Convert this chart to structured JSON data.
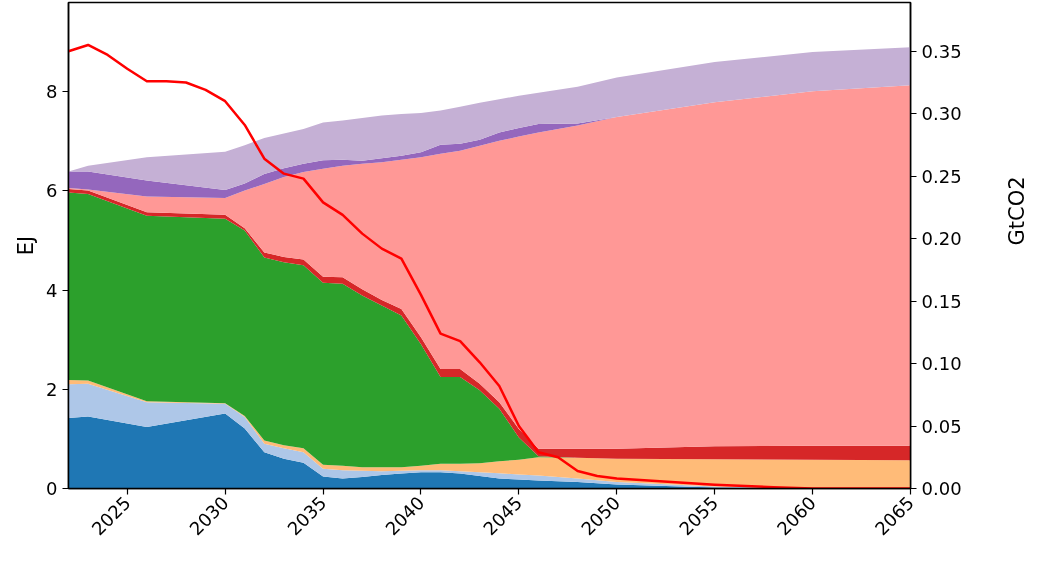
{
  "chart_data": {
    "type": "area",
    "stacked": true,
    "ylabel": "EJ",
    "y2label": "GtCO2",
    "x": [
      2022,
      2023,
      2026,
      2030,
      2031,
      2032,
      2033,
      2034,
      2035,
      2036,
      2037,
      2038,
      2039,
      2040,
      2041,
      2042,
      2043,
      2044,
      2045,
      2046,
      2048,
      2050,
      2055,
      2060,
      2065
    ],
    "series": [
      {
        "color": "#1f77b4",
        "values": [
          1.42,
          1.45,
          1.24,
          1.51,
          1.21,
          0.73,
          0.6,
          0.52,
          0.24,
          0.2,
          0.23,
          0.27,
          0.3,
          0.33,
          0.33,
          0.3,
          0.25,
          0.2,
          0.18,
          0.16,
          0.13,
          0.08,
          0.02,
          0,
          0
        ]
      },
      {
        "color": "#aec7e8",
        "values": [
          0.68,
          0.66,
          0.5,
          0.2,
          0.23,
          0.17,
          0.21,
          0.21,
          0.16,
          0.17,
          0.13,
          0.08,
          0.06,
          0.04,
          0.04,
          0.05,
          0.08,
          0.11,
          0.1,
          0.1,
          0.07,
          0.05,
          0.02,
          0,
          0
        ]
      },
      {
        "color": "#ffbb78",
        "values": [
          0.09,
          0.07,
          0.02,
          0.01,
          0.02,
          0.07,
          0.06,
          0.08,
          0.08,
          0.09,
          0.07,
          0.08,
          0.07,
          0.09,
          0.13,
          0.15,
          0.18,
          0.24,
          0.3,
          0.37,
          0.42,
          0.47,
          0.55,
          0.58,
          0.57
        ]
      },
      {
        "color": "#2ca02c",
        "values": [
          3.78,
          3.76,
          3.74,
          3.72,
          3.74,
          3.69,
          3.69,
          3.69,
          3.67,
          3.67,
          3.46,
          3.26,
          3.06,
          2.45,
          1.75,
          1.75,
          1.47,
          1.06,
          0.45,
          0.02,
          0,
          0,
          0,
          0,
          0
        ]
      },
      {
        "color": "#d62728",
        "values": [
          0.07,
          0.07,
          0.07,
          0.08,
          0.05,
          0.1,
          0.11,
          0.12,
          0.12,
          0.13,
          0.13,
          0.11,
          0.13,
          0.14,
          0.16,
          0.16,
          0.13,
          0.13,
          0.17,
          0.15,
          0.18,
          0.2,
          0.26,
          0.28,
          0.29
        ]
      },
      {
        "color": "#ff9896",
        "values": [
          0.02,
          0.02,
          0.32,
          0.34,
          0.76,
          1.38,
          1.61,
          1.76,
          2.18,
          2.25,
          2.53,
          2.78,
          3.01,
          3.63,
          4.34,
          4.4,
          4.8,
          5.27,
          5.9,
          6.38,
          6.52,
          6.69,
          6.94,
          7.15,
          7.27
        ]
      },
      {
        "color": "#9467bd",
        "values": [
          0.33,
          0.36,
          0.32,
          0.16,
          0.14,
          0.2,
          0.18,
          0.17,
          0.17,
          0.12,
          0.06,
          0.08,
          0.08,
          0.1,
          0.18,
          0.14,
          0.12,
          0.17,
          0.17,
          0.17,
          0.04,
          0,
          0,
          0,
          0
        ]
      },
      {
        "color": "#c5b0d5",
        "values": [
          0,
          0.12,
          0.47,
          0.77,
          0.77,
          0.73,
          0.7,
          0.7,
          0.76,
          0.79,
          0.86,
          0.86,
          0.84,
          0.79,
          0.69,
          0.75,
          0.75,
          0.67,
          0.65,
          0.63,
          0.74,
          0.8,
          0.81,
          0.79,
          0.77
        ]
      },
      {
        "type": "line",
        "axis": "y2",
        "color": "#ff0000",
        "x": [
          2022,
          2023,
          2024,
          2025,
          2026,
          2027,
          2028,
          2029,
          2030,
          2031,
          2032,
          2033,
          2034,
          2035,
          2036,
          2037,
          2038,
          2039,
          2040,
          2041,
          2042,
          2043,
          2044,
          2045,
          2046,
          2047,
          2048,
          2049,
          2050,
          2055,
          2058,
          2060,
          2065
        ],
        "values": [
          0.35,
          0.355,
          0.347,
          0.336,
          0.326,
          0.326,
          0.325,
          0.319,
          0.31,
          0.291,
          0.264,
          0.252,
          0.248,
          0.229,
          0.219,
          0.204,
          0.192,
          0.184,
          0.155,
          0.124,
          0.118,
          0.101,
          0.082,
          0.05,
          0.029,
          0.025,
          0.014,
          0.01,
          0.008,
          0.003,
          0.001,
          0,
          0
        ]
      }
    ],
    "xlim": [
      2022,
      2065
    ],
    "xticks": [
      2025,
      2030,
      2035,
      2040,
      2045,
      2050,
      2055,
      2060,
      2065
    ],
    "ylim": [
      0,
      9.8
    ],
    "yticks": [
      0,
      2,
      4,
      6,
      8
    ],
    "y2lim": [
      0,
      0.389
    ],
    "y2ticks": [
      {
        "value": 0,
        "label": "0.00"
      },
      {
        "value": 0.05,
        "label": "0.05"
      },
      {
        "value": 0.1,
        "label": "0.10"
      },
      {
        "value": 0.15,
        "label": "0.15"
      },
      {
        "value": 0.2,
        "label": "0.20"
      },
      {
        "value": 0.25,
        "label": "0.25"
      },
      {
        "value": 0.3,
        "label": "0.30"
      },
      {
        "value": 0.35,
        "label": "0.35"
      }
    ],
    "grid": false
  }
}
